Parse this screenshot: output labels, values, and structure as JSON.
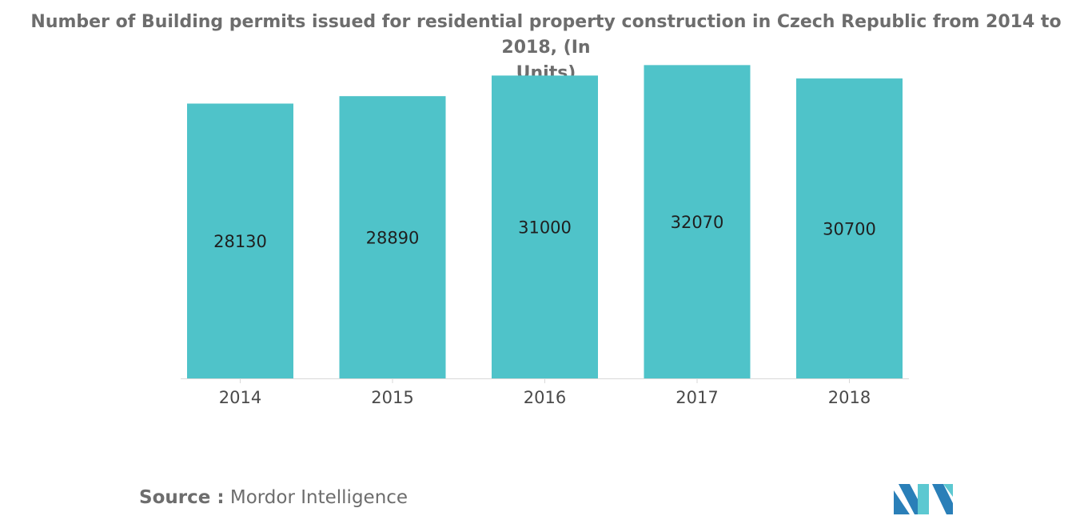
{
  "chart_data": {
    "type": "bar",
    "title_lines": [
      "Number of Building permits issued for residential property construction in Czech Republic from 2014 to 2018, (In",
      "Units)"
    ],
    "categories": [
      "2014",
      "2015",
      "2016",
      "2017",
      "2018"
    ],
    "values": [
      28130,
      28890,
      31000,
      32070,
      30700
    ],
    "data_labels": [
      "28130",
      "28890",
      "31000",
      "32070",
      "30700"
    ],
    "xlabel": "",
    "ylabel": "",
    "ylim": [
      0,
      33000
    ],
    "grid": false,
    "legend": "none",
    "bar_color": "#4fc3c9"
  },
  "source": {
    "label": "Source :",
    "text": "Mordor Intelligence"
  },
  "logo": {
    "name": "mordor-intelligence-logo",
    "colors": [
      "#2a7fb8",
      "#5cc8d1"
    ]
  }
}
